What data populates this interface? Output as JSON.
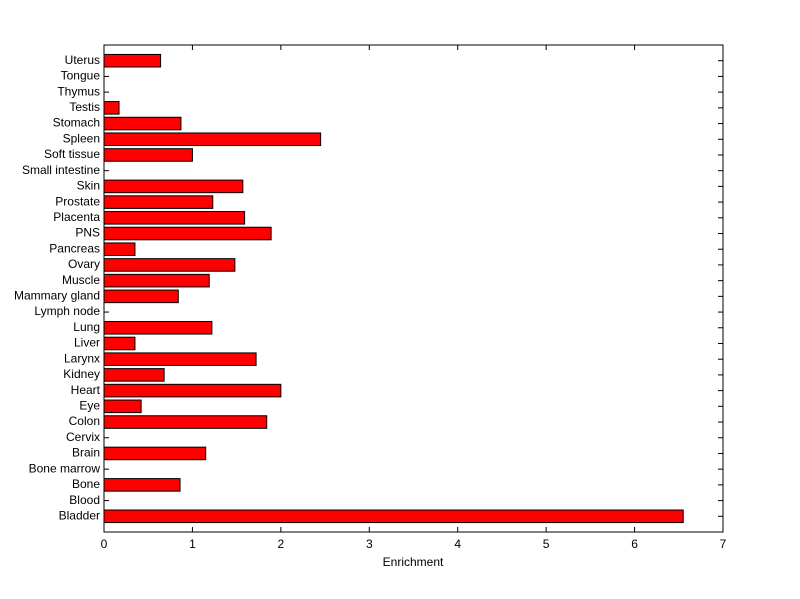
{
  "chart_data": {
    "type": "barh",
    "xlabel": "Enrichment",
    "categories": [
      "Bladder",
      "Blood",
      "Bone",
      "Bone marrow",
      "Brain",
      "Cervix",
      "Colon",
      "Eye",
      "Heart",
      "Kidney",
      "Larynx",
      "Liver",
      "Lung",
      "Lymph node",
      "Mammary gland",
      "Muscle",
      "Ovary",
      "Pancreas",
      "PNS",
      "Placenta",
      "Prostate",
      "Skin",
      "Small intestine",
      "Soft tissue",
      "Spleen",
      "Stomach",
      "Testis",
      "Thymus",
      "Tongue",
      "Uterus"
    ],
    "values": [
      6.55,
      0,
      0.86,
      0,
      1.15,
      0,
      1.84,
      0.42,
      2.0,
      0.68,
      1.72,
      0.35,
      1.22,
      0,
      0.84,
      1.19,
      1.48,
      0.35,
      1.89,
      1.59,
      1.23,
      1.57,
      0,
      1.0,
      2.45,
      0.87,
      0.17,
      0,
      0,
      0.64
    ],
    "color": "#ff0000",
    "xlim": [
      0,
      7
    ],
    "xticks": [
      0,
      1,
      2,
      3,
      4,
      5,
      6,
      7
    ]
  }
}
